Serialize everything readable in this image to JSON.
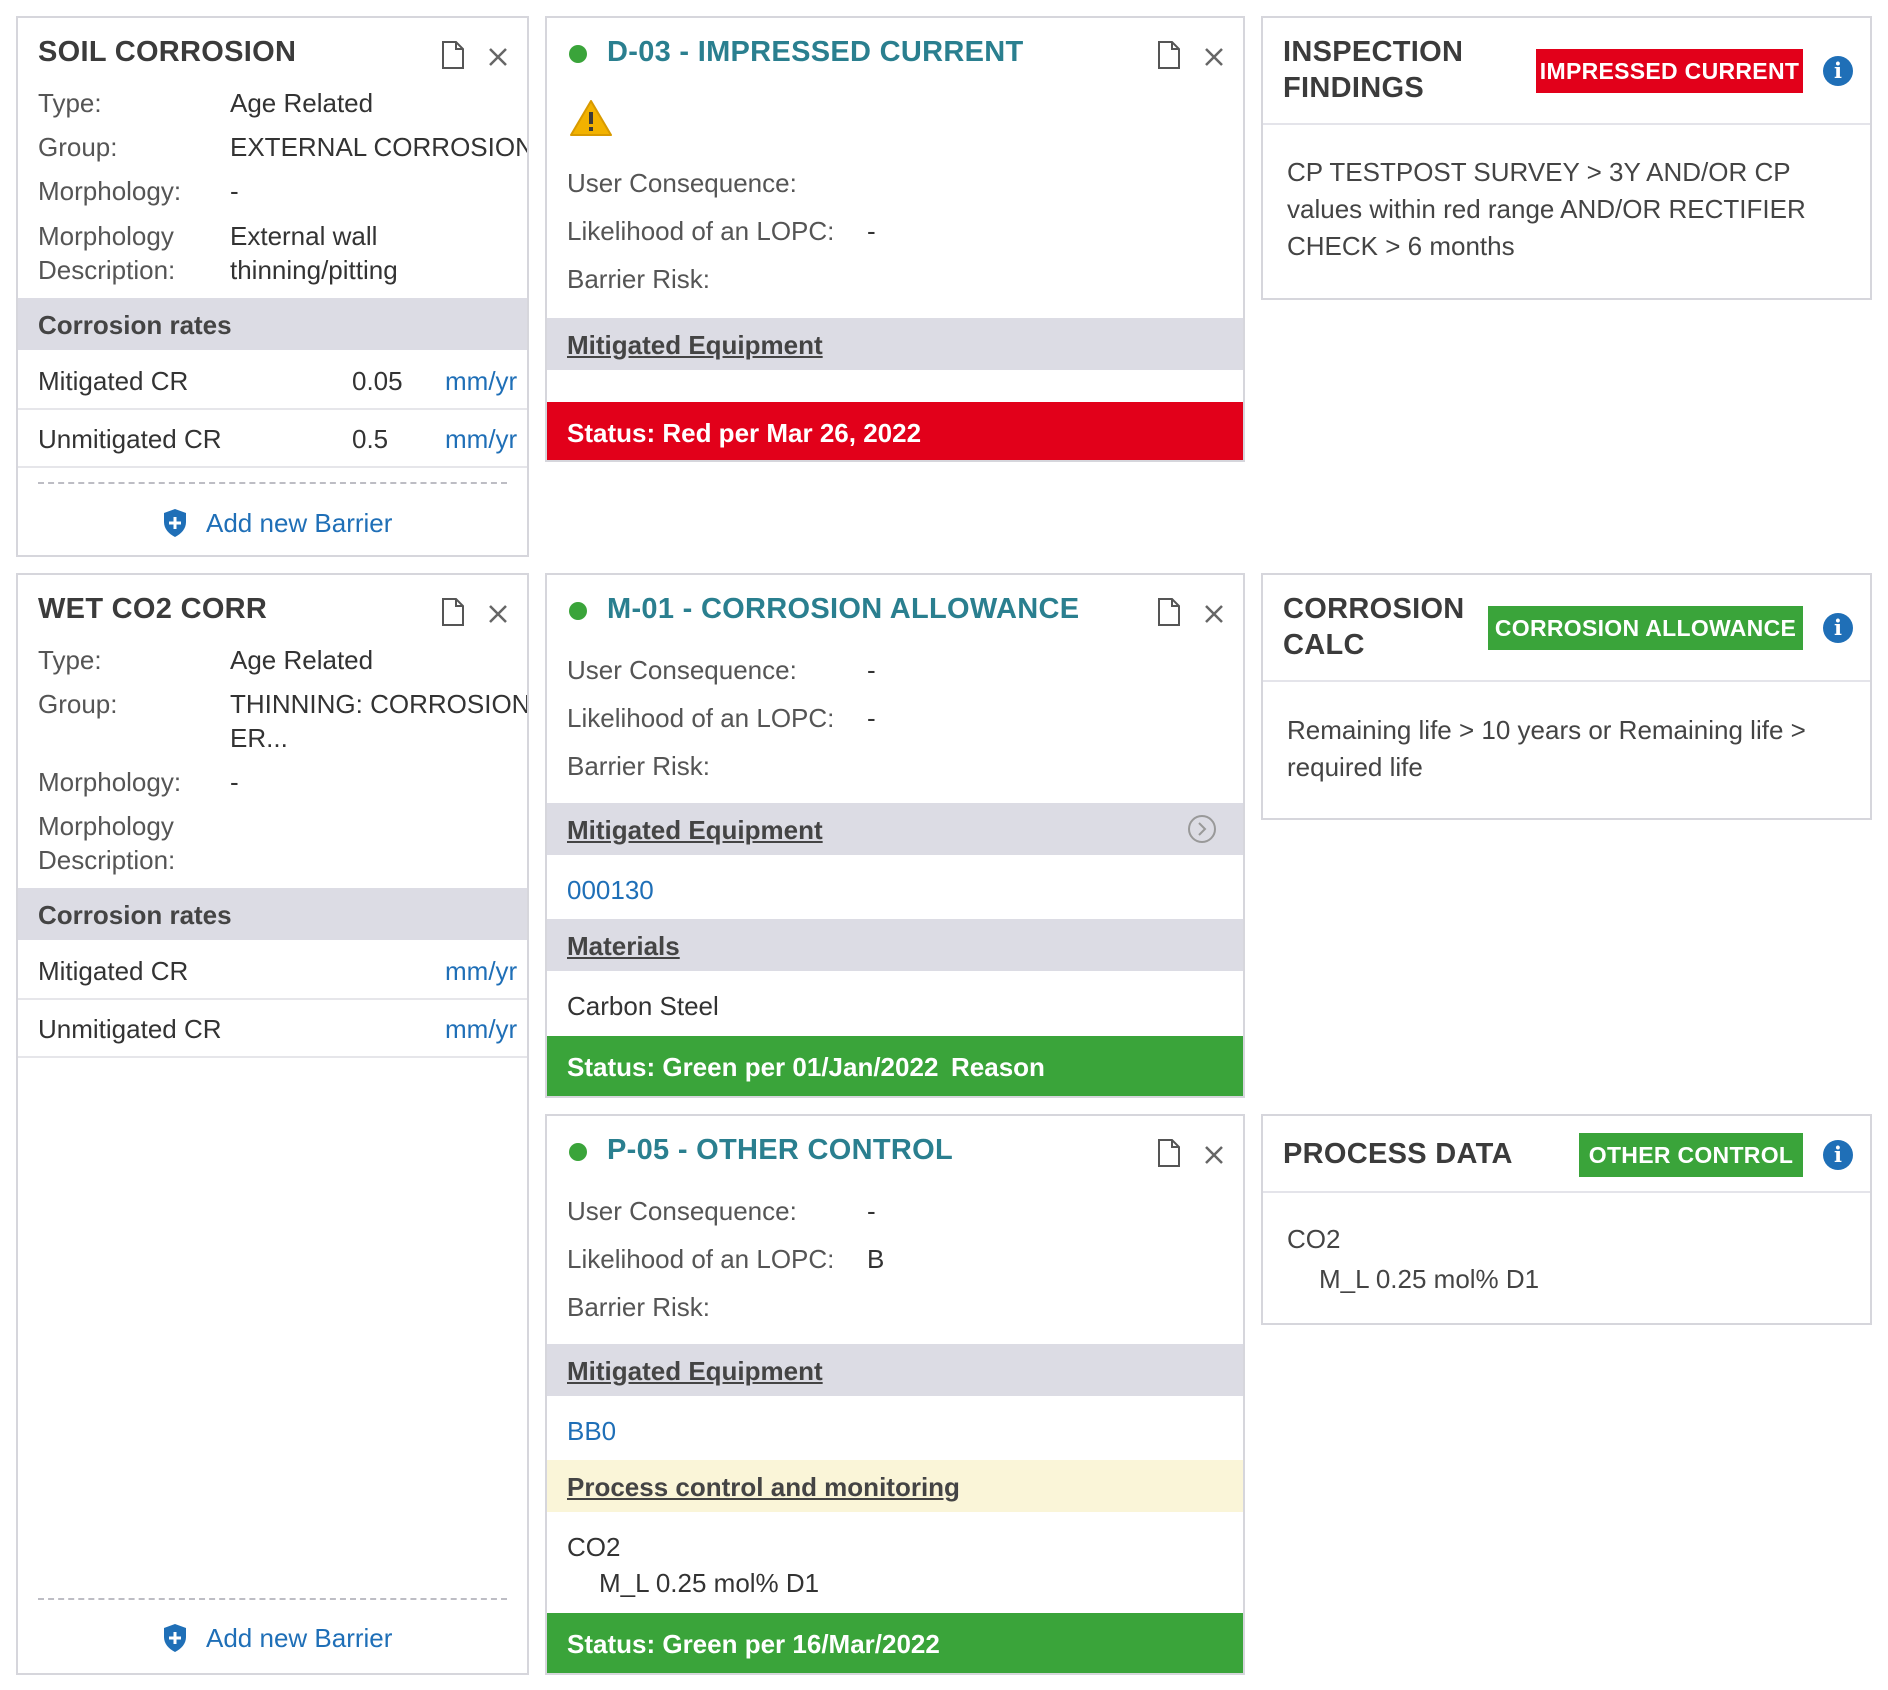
{
  "threats": [
    {
      "title": "SOIL CORROSION",
      "type_label": "Type:",
      "type_value": "Age Related",
      "group_label": "Group:",
      "group_value": "EXTERNAL CORROSION",
      "morphology_label": "Morphology:",
      "morphology_value": "-",
      "morph_desc_label_1": "Morphology",
      "morph_desc_label_2": "Description:",
      "morph_desc_value_1": "External wall",
      "morph_desc_value_2": "thinning/pitting",
      "rates_header": "Corrosion rates",
      "mitigated_label": "Mitigated CR",
      "mitigated_value": "0.05",
      "mitigated_unit": "mm/yr",
      "unmitigated_label": "Unmitigated CR",
      "unmitigated_value": "0.5",
      "unmitigated_unit": "mm/yr",
      "add_barrier": "Add new Barrier"
    },
    {
      "title": "WET CO2 CORR",
      "type_label": "Type:",
      "type_value": "Age Related",
      "group_label": "Group:",
      "group_value_1": "THINNING: CORROSION,",
      "group_value_2": "ER...",
      "morphology_label": "Morphology:",
      "morphology_value": "-",
      "morph_desc_label_1": "Morphology",
      "morph_desc_label_2": "Description:",
      "rates_header": "Corrosion rates",
      "mitigated_label": "Mitigated CR",
      "mitigated_unit": "mm/yr",
      "unmitigated_label": "Unmitigated CR",
      "unmitigated_unit": "mm/yr",
      "add_barrier": "Add new Barrier"
    }
  ],
  "barriers": [
    {
      "title": "D-03 - IMPRESSED CURRENT",
      "user_consequence_label": "User Consequence:",
      "likelihood_label": "Likelihood of an LOPC:",
      "likelihood_value": "-",
      "barrier_risk_label": "Barrier Risk:",
      "mitigated_equipment_header": "Mitigated Equipment",
      "status": "Status: Red per Mar 26, 2022",
      "status_color": "#e2001a"
    },
    {
      "title": "M-01 - CORROSION ALLOWANCE",
      "user_consequence_label": "User Consequence:",
      "user_consequence_value": "-",
      "likelihood_label": "Likelihood of an LOPC:",
      "likelihood_value": "-",
      "barrier_risk_label": "Barrier Risk:",
      "mitigated_equipment_header": "Mitigated Equipment",
      "equipment_link": "000130",
      "materials_header": "Materials",
      "material": "Carbon Steel",
      "status": "Status: Green per 01/Jan/2022",
      "status_reason": "Reason",
      "status_color": "#3aa43a"
    },
    {
      "title": "P-05 - OTHER CONTROL",
      "user_consequence_label": "User Consequence:",
      "user_consequence_value": "-",
      "likelihood_label": "Likelihood of an LOPC:",
      "likelihood_value": "B",
      "barrier_risk_label": "Barrier Risk:",
      "mitigated_equipment_header": "Mitigated Equipment",
      "equipment_link": "BB0",
      "process_header": "Process control and monitoring",
      "process_line_1": "CO2",
      "process_line_2": "M_L 0.25 mol% D1",
      "status": "Status: Green per 16/Mar/2022",
      "status_color": "#3aa43a"
    }
  ],
  "findings": [
    {
      "title_1": "INSPECTION",
      "title_2": "FINDINGS",
      "badge": "IMPRESSED CURRENT",
      "badge_color": "#e2001a",
      "text": "CP TESTPOST SURVEY > 3Y AND/OR CP values within red range AND/OR RECTIFIER CHECK > 6 months"
    },
    {
      "title_1": "CORROSION",
      "title_2": "CALC",
      "badge": "CORROSION ALLOWANCE",
      "badge_color": "#3aa43a",
      "text": "Remaining life > 10 years or Remaining life > required life"
    },
    {
      "title_1": "PROCESS DATA",
      "badge": "OTHER CONTROL",
      "badge_color": "#3aa43a",
      "line_1": "CO2",
      "line_2": "M_L 0.25 mol% D1"
    }
  ],
  "icons": {
    "info": "i",
    "doc": "document-icon",
    "close": "close-icon",
    "shield": "shield-plus-icon",
    "warning": "warning-icon",
    "chevron": "chevron-right-circle-icon"
  }
}
